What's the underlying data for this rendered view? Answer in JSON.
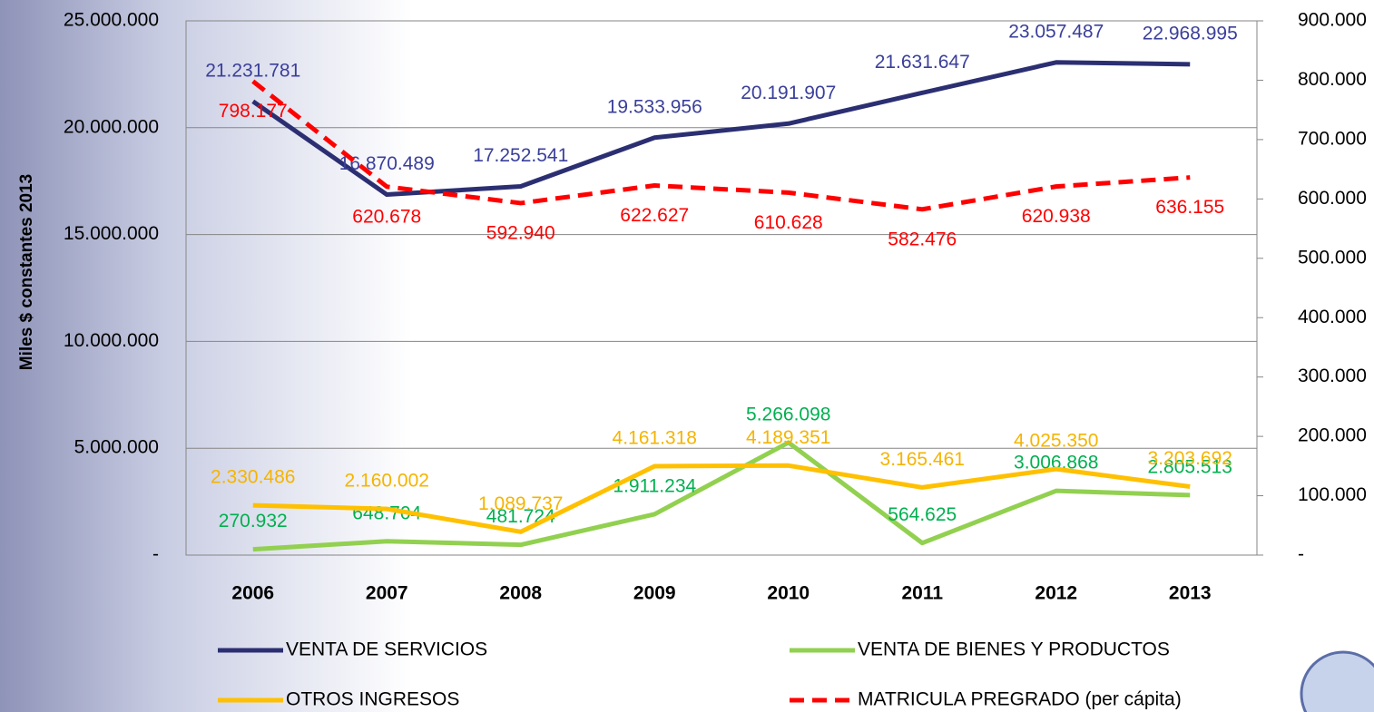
{
  "chart_data": {
    "type": "line",
    "y_label": "Miles $ constantes 2013",
    "categories": [
      "2006",
      "2007",
      "2008",
      "2009",
      "2010",
      "2011",
      "2012",
      "2013"
    ],
    "ylim": [
      0,
      25000000
    ],
    "yticks": [
      {
        "value": 0,
        "label": "-"
      },
      {
        "value": 5000000,
        "label": "5.000.000"
      },
      {
        "value": 10000000,
        "label": "10.000.000"
      },
      {
        "value": 15000000,
        "label": "15.000.000"
      },
      {
        "value": 20000000,
        "label": "20.000.000"
      },
      {
        "value": 25000000,
        "label": "25.000.000"
      }
    ],
    "y2lim": [
      0,
      900000
    ],
    "y2ticks": [
      {
        "value": 0,
        "label": "-"
      },
      {
        "value": 100000,
        "label": "100.000"
      },
      {
        "value": 200000,
        "label": "200.000"
      },
      {
        "value": 300000,
        "label": "300.000"
      },
      {
        "value": 400000,
        "label": "400.000"
      },
      {
        "value": 500000,
        "label": "500.000"
      },
      {
        "value": 600000,
        "label": "600.000"
      },
      {
        "value": 700000,
        "label": "700.000"
      },
      {
        "value": 800000,
        "label": "800.000"
      },
      {
        "value": 900000,
        "label": "900.000"
      }
    ],
    "grid": true,
    "series": [
      {
        "name": "VENTA DE SERVICIOS",
        "color": "#2b2f72",
        "label_color": "#3a3f9a",
        "values": [
          21231781,
          16870489,
          17252541,
          19533956,
          20191907,
          21631647,
          23057487,
          22968995
        ],
        "value_labels": [
          "21.231.781",
          "16.870.489",
          "17.252.541",
          "19.533.956",
          "20.191.907",
          "21.631.647",
          "23.057.487",
          "22.968.995"
        ]
      },
      {
        "name": "VENTA DE BIENES Y PRODUCTOS",
        "color": "#92d050",
        "label_color": "#00b050",
        "values": [
          270932,
          648704,
          481724,
          1911234,
          5266098,
          564625,
          3006868,
          2805513
        ],
        "value_labels": [
          "270.932",
          "648.704",
          "481.724",
          "1.911.234",
          "5.266.098",
          "564.625",
          "3.006.868",
          "2.805.513"
        ]
      },
      {
        "name": "OTROS INGRESOS",
        "color": "#ffc000",
        "label_color": "#f5b400",
        "values": [
          2330486,
          2160002,
          1089737,
          4161318,
          4189351,
          3165461,
          4025350,
          3203692
        ],
        "value_labels": [
          "2.330.486",
          "2.160.002",
          "1.089.737",
          "4.161.318",
          "4.189.351",
          "3.165.461",
          "4.025.350",
          "3.203.692"
        ]
      },
      {
        "name": "MATRICULA PREGRADO (per cápita)",
        "color": "#ff0000",
        "label_color": "#ff0000",
        "axis": "y2",
        "dash": true,
        "values": [
          798177,
          620678,
          592940,
          622627,
          610628,
          582476,
          620938,
          636155
        ],
        "value_labels": [
          "798.177",
          "620.678",
          "592.940",
          "622.627",
          "610.628",
          "582.476",
          "620.938",
          "636.155"
        ]
      }
    ]
  }
}
